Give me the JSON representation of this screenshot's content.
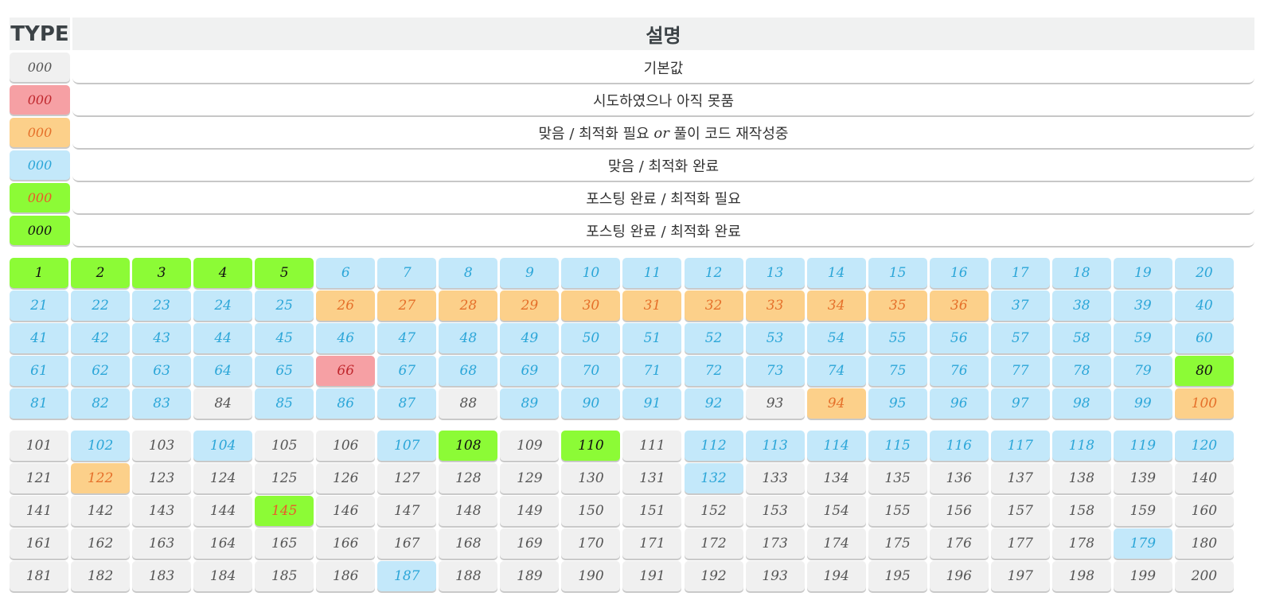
{
  "legend": {
    "header_type": "TYPE",
    "header_desc": "설명",
    "rows": [
      {
        "sample": "000",
        "status": 0,
        "desc": "기본값"
      },
      {
        "sample": "000",
        "status": 1,
        "desc": "시도하였으나 아직 못품"
      },
      {
        "sample": "000",
        "status": 2,
        "desc_pre": "맞음 / 최적화 필요 ",
        "desc_or": "or",
        "desc_post": " 풀이 코드 재작성중"
      },
      {
        "sample": "000",
        "status": 3,
        "desc": "맞음 / 최적화 완료"
      },
      {
        "sample": "000",
        "status": 4,
        "desc": "포스팅 완료 / 최적화 필요"
      },
      {
        "sample": "000",
        "status": 5,
        "desc": "포스팅 완료 / 최적화 완료"
      }
    ]
  },
  "status_colors": {
    "0": {
      "bg": "#f0f0f0",
      "fg": "#555555"
    },
    "1": {
      "bg": "#f6a0a4",
      "fg": "#c0282e"
    },
    "2": {
      "bg": "#fcd08a",
      "fg": "#e5702a"
    },
    "3": {
      "bg": "#c3e8fa",
      "fg": "#2ca6d8"
    },
    "4": {
      "bg": "#8cfb36",
      "fg": "#ea5a2a"
    },
    "5": {
      "bg": "#8cfb36",
      "fg": "#111111"
    }
  },
  "problems_1_100": [
    {
      "n": "1",
      "s": 5
    },
    {
      "n": "2",
      "s": 5
    },
    {
      "n": "3",
      "s": 5
    },
    {
      "n": "4",
      "s": 5
    },
    {
      "n": "5",
      "s": 5
    },
    {
      "n": "6",
      "s": 3
    },
    {
      "n": "7",
      "s": 3
    },
    {
      "n": "8",
      "s": 3
    },
    {
      "n": "9",
      "s": 3
    },
    {
      "n": "10",
      "s": 3
    },
    {
      "n": "11",
      "s": 3
    },
    {
      "n": "12",
      "s": 3
    },
    {
      "n": "13",
      "s": 3
    },
    {
      "n": "14",
      "s": 3
    },
    {
      "n": "15",
      "s": 3
    },
    {
      "n": "16",
      "s": 3
    },
    {
      "n": "17",
      "s": 3
    },
    {
      "n": "18",
      "s": 3
    },
    {
      "n": "19",
      "s": 3
    },
    {
      "n": "20",
      "s": 3
    },
    {
      "n": "21",
      "s": 3
    },
    {
      "n": "22",
      "s": 3
    },
    {
      "n": "23",
      "s": 3
    },
    {
      "n": "24",
      "s": 3
    },
    {
      "n": "25",
      "s": 3
    },
    {
      "n": "26",
      "s": 2
    },
    {
      "n": "27",
      "s": 2
    },
    {
      "n": "28",
      "s": 2
    },
    {
      "n": "29",
      "s": 2
    },
    {
      "n": "30",
      "s": 2
    },
    {
      "n": "31",
      "s": 2
    },
    {
      "n": "32",
      "s": 2
    },
    {
      "n": "33",
      "s": 2
    },
    {
      "n": "34",
      "s": 2
    },
    {
      "n": "35",
      "s": 2
    },
    {
      "n": "36",
      "s": 2
    },
    {
      "n": "37",
      "s": 3
    },
    {
      "n": "38",
      "s": 3
    },
    {
      "n": "39",
      "s": 3
    },
    {
      "n": "40",
      "s": 3
    },
    {
      "n": "41",
      "s": 3
    },
    {
      "n": "42",
      "s": 3
    },
    {
      "n": "43",
      "s": 3
    },
    {
      "n": "44",
      "s": 3
    },
    {
      "n": "45",
      "s": 3
    },
    {
      "n": "46",
      "s": 3
    },
    {
      "n": "47",
      "s": 3
    },
    {
      "n": "48",
      "s": 3
    },
    {
      "n": "49",
      "s": 3
    },
    {
      "n": "50",
      "s": 3
    },
    {
      "n": "51",
      "s": 3
    },
    {
      "n": "52",
      "s": 3
    },
    {
      "n": "53",
      "s": 3
    },
    {
      "n": "54",
      "s": 3
    },
    {
      "n": "55",
      "s": 3
    },
    {
      "n": "56",
      "s": 3
    },
    {
      "n": "57",
      "s": 3
    },
    {
      "n": "58",
      "s": 3
    },
    {
      "n": "59",
      "s": 3
    },
    {
      "n": "60",
      "s": 3
    },
    {
      "n": "61",
      "s": 3
    },
    {
      "n": "62",
      "s": 3
    },
    {
      "n": "63",
      "s": 3
    },
    {
      "n": "64",
      "s": 3
    },
    {
      "n": "65",
      "s": 3
    },
    {
      "n": "66",
      "s": 1
    },
    {
      "n": "67",
      "s": 3
    },
    {
      "n": "68",
      "s": 3
    },
    {
      "n": "69",
      "s": 3
    },
    {
      "n": "70",
      "s": 3
    },
    {
      "n": "71",
      "s": 3
    },
    {
      "n": "72",
      "s": 3
    },
    {
      "n": "73",
      "s": 3
    },
    {
      "n": "74",
      "s": 3
    },
    {
      "n": "75",
      "s": 3
    },
    {
      "n": "76",
      "s": 3
    },
    {
      "n": "77",
      "s": 3
    },
    {
      "n": "78",
      "s": 3
    },
    {
      "n": "79",
      "s": 3
    },
    {
      "n": "80",
      "s": 5
    },
    {
      "n": "81",
      "s": 3
    },
    {
      "n": "82",
      "s": 3
    },
    {
      "n": "83",
      "s": 3
    },
    {
      "n": "84",
      "s": 0
    },
    {
      "n": "85",
      "s": 3
    },
    {
      "n": "86",
      "s": 3
    },
    {
      "n": "87",
      "s": 3
    },
    {
      "n": "88",
      "s": 0
    },
    {
      "n": "89",
      "s": 3
    },
    {
      "n": "90",
      "s": 3
    },
    {
      "n": "91",
      "s": 3
    },
    {
      "n": "92",
      "s": 3
    },
    {
      "n": "93",
      "s": 0
    },
    {
      "n": "94",
      "s": 2
    },
    {
      "n": "95",
      "s": 3
    },
    {
      "n": "96",
      "s": 3
    },
    {
      "n": "97",
      "s": 3
    },
    {
      "n": "98",
      "s": 3
    },
    {
      "n": "99",
      "s": 3
    },
    {
      "n": "100",
      "s": 2
    }
  ],
  "problems_101_200": [
    {
      "n": "101",
      "s": 0
    },
    {
      "n": "102",
      "s": 3
    },
    {
      "n": "103",
      "s": 0
    },
    {
      "n": "104",
      "s": 3
    },
    {
      "n": "105",
      "s": 0
    },
    {
      "n": "106",
      "s": 0
    },
    {
      "n": "107",
      "s": 3
    },
    {
      "n": "108",
      "s": 5
    },
    {
      "n": "109",
      "s": 0
    },
    {
      "n": "110",
      "s": 5
    },
    {
      "n": "111",
      "s": 0
    },
    {
      "n": "112",
      "s": 3
    },
    {
      "n": "113",
      "s": 3
    },
    {
      "n": "114",
      "s": 3
    },
    {
      "n": "115",
      "s": 3
    },
    {
      "n": "116",
      "s": 3
    },
    {
      "n": "117",
      "s": 3
    },
    {
      "n": "118",
      "s": 3
    },
    {
      "n": "119",
      "s": 3
    },
    {
      "n": "120",
      "s": 3
    },
    {
      "n": "121",
      "s": 0
    },
    {
      "n": "122",
      "s": 2
    },
    {
      "n": "123",
      "s": 0
    },
    {
      "n": "124",
      "s": 0
    },
    {
      "n": "125",
      "s": 0
    },
    {
      "n": "126",
      "s": 0
    },
    {
      "n": "127",
      "s": 0
    },
    {
      "n": "128",
      "s": 0
    },
    {
      "n": "129",
      "s": 0
    },
    {
      "n": "130",
      "s": 0
    },
    {
      "n": "131",
      "s": 0
    },
    {
      "n": "132",
      "s": 3
    },
    {
      "n": "133",
      "s": 0
    },
    {
      "n": "134",
      "s": 0
    },
    {
      "n": "135",
      "s": 0
    },
    {
      "n": "136",
      "s": 0
    },
    {
      "n": "137",
      "s": 0
    },
    {
      "n": "138",
      "s": 0
    },
    {
      "n": "139",
      "s": 0
    },
    {
      "n": "140",
      "s": 0
    },
    {
      "n": "141",
      "s": 0
    },
    {
      "n": "142",
      "s": 0
    },
    {
      "n": "143",
      "s": 0
    },
    {
      "n": "144",
      "s": 0
    },
    {
      "n": "145",
      "s": 4
    },
    {
      "n": "146",
      "s": 0
    },
    {
      "n": "147",
      "s": 0
    },
    {
      "n": "148",
      "s": 0
    },
    {
      "n": "149",
      "s": 0
    },
    {
      "n": "150",
      "s": 0
    },
    {
      "n": "151",
      "s": 0
    },
    {
      "n": "152",
      "s": 0
    },
    {
      "n": "153",
      "s": 0
    },
    {
      "n": "154",
      "s": 0
    },
    {
      "n": "155",
      "s": 0
    },
    {
      "n": "156",
      "s": 0
    },
    {
      "n": "157",
      "s": 0
    },
    {
      "n": "158",
      "s": 0
    },
    {
      "n": "159",
      "s": 0
    },
    {
      "n": "160",
      "s": 0
    },
    {
      "n": "161",
      "s": 0
    },
    {
      "n": "162",
      "s": 0
    },
    {
      "n": "163",
      "s": 0
    },
    {
      "n": "164",
      "s": 0
    },
    {
      "n": "165",
      "s": 0
    },
    {
      "n": "166",
      "s": 0
    },
    {
      "n": "167",
      "s": 0
    },
    {
      "n": "168",
      "s": 0
    },
    {
      "n": "169",
      "s": 0
    },
    {
      "n": "170",
      "s": 0
    },
    {
      "n": "171",
      "s": 0
    },
    {
      "n": "172",
      "s": 0
    },
    {
      "n": "173",
      "s": 0
    },
    {
      "n": "174",
      "s": 0
    },
    {
      "n": "175",
      "s": 0
    },
    {
      "n": "176",
      "s": 0
    },
    {
      "n": "177",
      "s": 0
    },
    {
      "n": "178",
      "s": 0
    },
    {
      "n": "179",
      "s": 3
    },
    {
      "n": "180",
      "s": 0
    },
    {
      "n": "181",
      "s": 0
    },
    {
      "n": "182",
      "s": 0
    },
    {
      "n": "183",
      "s": 0
    },
    {
      "n": "184",
      "s": 0
    },
    {
      "n": "185",
      "s": 0
    },
    {
      "n": "186",
      "s": 0
    },
    {
      "n": "187",
      "s": 3
    },
    {
      "n": "188",
      "s": 0
    },
    {
      "n": "189",
      "s": 0
    },
    {
      "n": "190",
      "s": 0
    },
    {
      "n": "191",
      "s": 0
    },
    {
      "n": "192",
      "s": 0
    },
    {
      "n": "193",
      "s": 0
    },
    {
      "n": "194",
      "s": 0
    },
    {
      "n": "195",
      "s": 0
    },
    {
      "n": "196",
      "s": 0
    },
    {
      "n": "197",
      "s": 0
    },
    {
      "n": "198",
      "s": 0
    },
    {
      "n": "199",
      "s": 0
    },
    {
      "n": "200",
      "s": 0
    }
  ]
}
